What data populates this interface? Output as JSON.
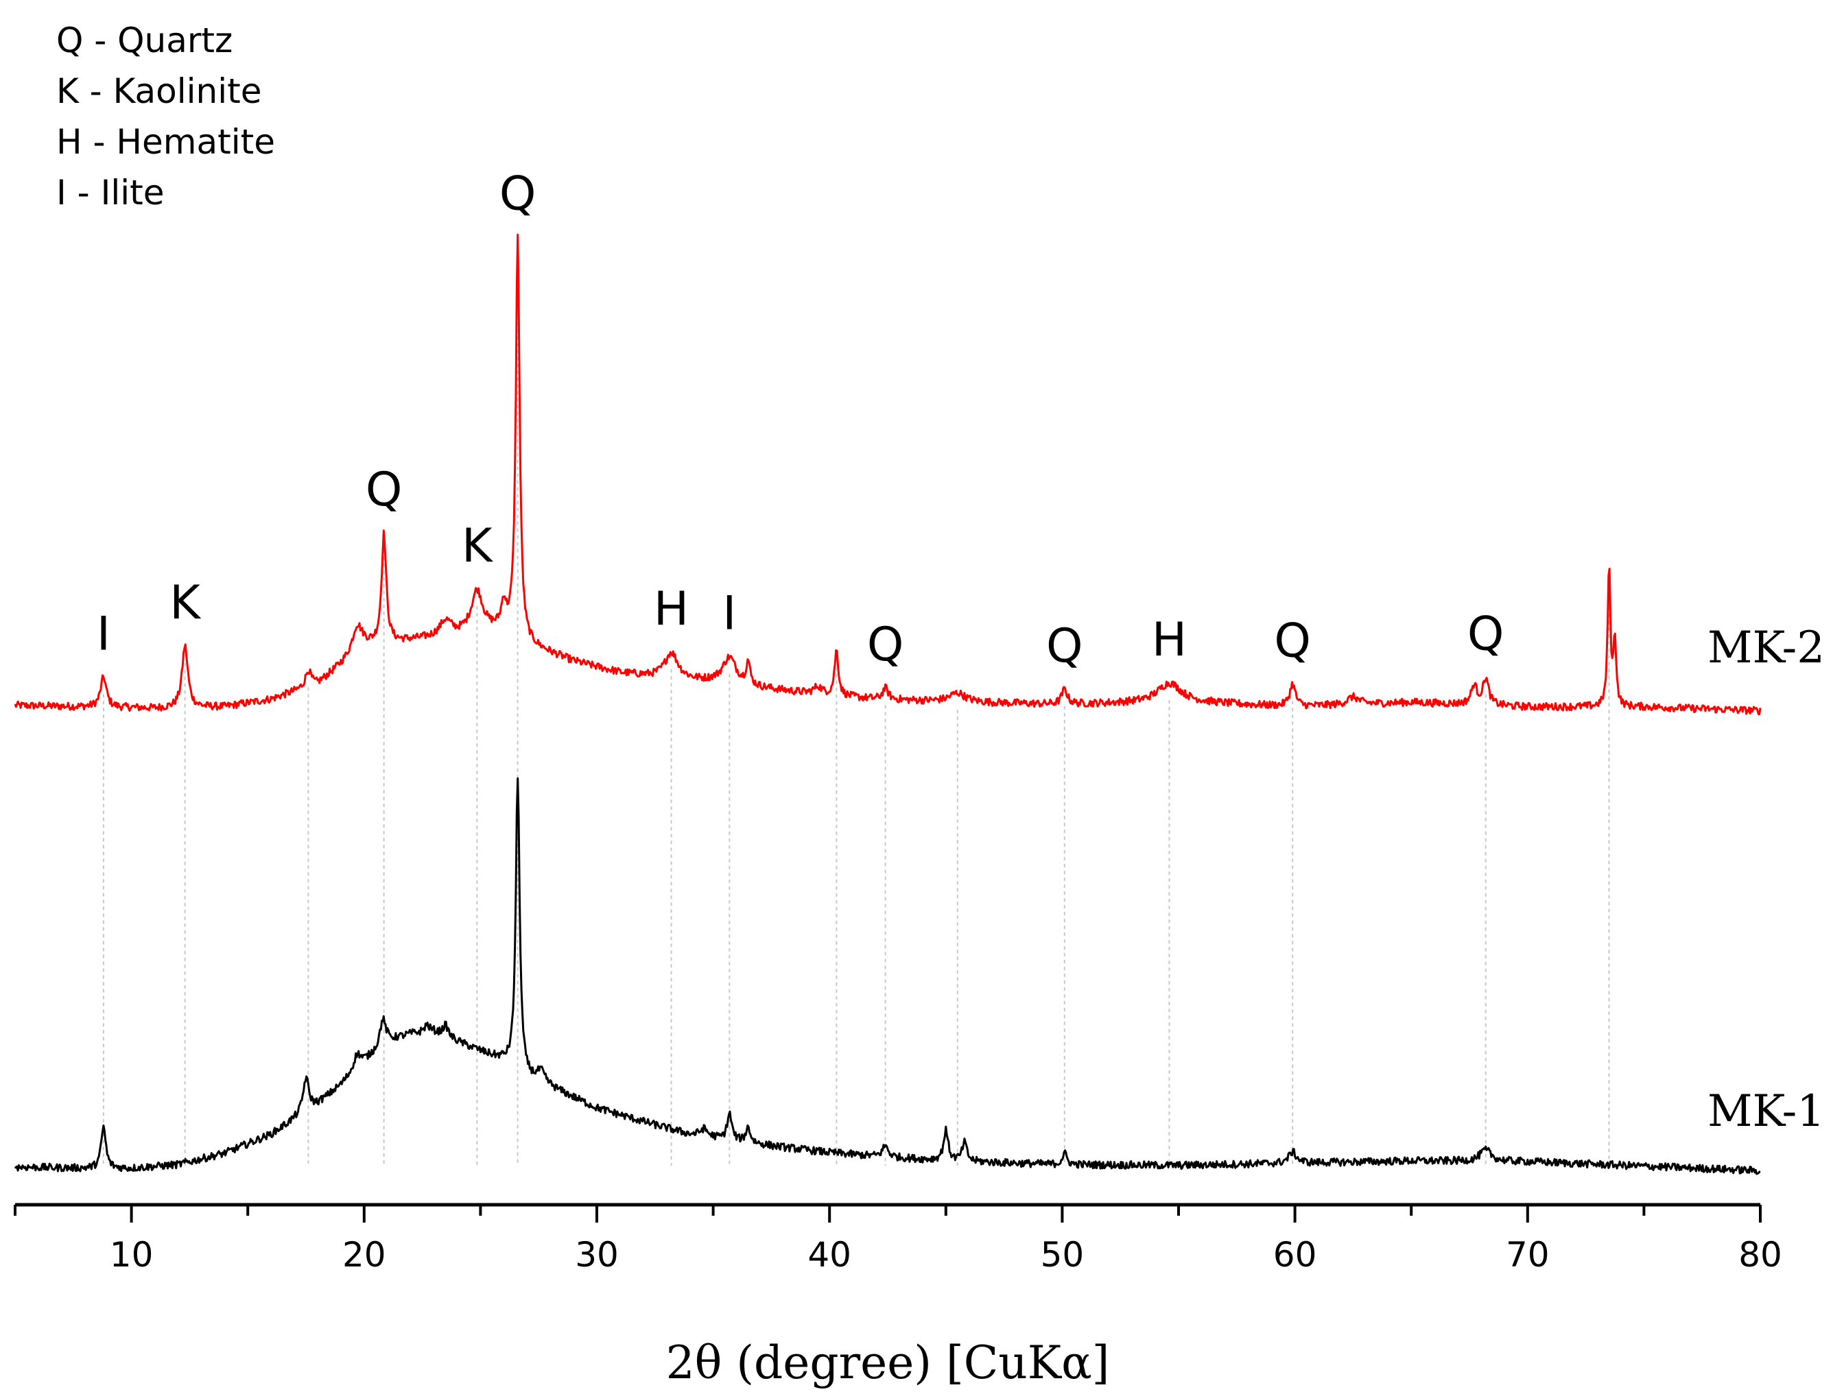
{
  "chart_data": {
    "type": "line",
    "xlabel": "2θ (degree) [CuKα]",
    "xlim": [
      5,
      80
    ],
    "x_ticks": [
      10,
      20,
      30,
      40,
      50,
      60,
      70,
      80
    ],
    "x_minor_step": 5,
    "grid": false,
    "legend_text": [
      "Q - Quartz",
      "K - Kaolinite",
      "H - Hematite",
      "I - Ilite"
    ],
    "series": [
      {
        "name": "MK-2",
        "color": "#ff0000",
        "baseline": [
          [
            5,
            0.12
          ],
          [
            8,
            0.1
          ],
          [
            11,
            0.08
          ],
          [
            14,
            0.1
          ],
          [
            16,
            0.2
          ],
          [
            18,
            0.4
          ],
          [
            19,
            0.65
          ],
          [
            20,
            0.9
          ],
          [
            22,
            0.98
          ],
          [
            24,
            1.05
          ],
          [
            26,
            1.12
          ],
          [
            27,
            0.92
          ],
          [
            29,
            0.7
          ],
          [
            31,
            0.55
          ],
          [
            33,
            0.47
          ],
          [
            35,
            0.43
          ],
          [
            37,
            0.35
          ],
          [
            39,
            0.28
          ],
          [
            42,
            0.2
          ],
          [
            45,
            0.17
          ],
          [
            50,
            0.13
          ],
          [
            55,
            0.17
          ],
          [
            60,
            0.1
          ],
          [
            65,
            0.16
          ],
          [
            70,
            0.1
          ],
          [
            75,
            0.1
          ],
          [
            80,
            0.05
          ]
        ],
        "peaks": [
          [
            8.8,
            0.4,
            0.15
          ],
          [
            12.3,
            0.82,
            0.15
          ],
          [
            17.6,
            0.22,
            0.15
          ],
          [
            19.7,
            0.35,
            0.25
          ],
          [
            20.85,
            1.45,
            0.12
          ],
          [
            23.5,
            0.2,
            0.3
          ],
          [
            24.85,
            0.55,
            0.3
          ],
          [
            26.0,
            0.3,
            0.12
          ],
          [
            26.6,
            5.3,
            0.1
          ],
          [
            33.2,
            0.35,
            0.35
          ],
          [
            35.7,
            0.35,
            0.35
          ],
          [
            36.5,
            0.3,
            0.1
          ],
          [
            39.5,
            0.1,
            0.2
          ],
          [
            40.3,
            0.6,
            0.1
          ],
          [
            42.4,
            0.15,
            0.15
          ],
          [
            45.5,
            0.12,
            0.4
          ],
          [
            50.1,
            0.2,
            0.15
          ],
          [
            54.6,
            0.25,
            0.6
          ],
          [
            59.9,
            0.3,
            0.15
          ],
          [
            62.5,
            0.1,
            0.3
          ],
          [
            67.7,
            0.25,
            0.15
          ],
          [
            68.2,
            0.35,
            0.15
          ],
          [
            73.5,
            1.85,
            0.07
          ],
          [
            73.75,
            0.9,
            0.07
          ]
        ]
      },
      {
        "name": "MK-1",
        "color": "#000000",
        "baseline": [
          [
            5,
            0.12
          ],
          [
            8,
            0.1
          ],
          [
            10,
            0.1
          ],
          [
            12,
            0.15
          ],
          [
            14,
            0.3
          ],
          [
            16,
            0.55
          ],
          [
            18,
            0.95
          ],
          [
            19,
            1.2
          ],
          [
            20,
            1.5
          ],
          [
            21,
            1.78
          ],
          [
            22,
            1.88
          ],
          [
            23,
            1.9
          ],
          [
            24,
            1.78
          ],
          [
            25,
            1.65
          ],
          [
            26,
            1.52
          ],
          [
            27,
            1.3
          ],
          [
            28,
            1.18
          ],
          [
            30,
            0.9
          ],
          [
            32,
            0.72
          ],
          [
            34,
            0.55
          ],
          [
            36,
            0.46
          ],
          [
            38,
            0.38
          ],
          [
            40,
            0.31
          ],
          [
            42,
            0.26
          ],
          [
            45,
            0.2
          ],
          [
            50,
            0.15
          ],
          [
            55,
            0.14
          ],
          [
            60,
            0.17
          ],
          [
            65,
            0.2
          ],
          [
            70,
            0.19
          ],
          [
            75,
            0.13
          ],
          [
            80,
            0.07
          ]
        ],
        "peaks": [
          [
            8.8,
            0.55,
            0.12
          ],
          [
            17.5,
            0.45,
            0.15
          ],
          [
            19.7,
            0.2,
            0.2
          ],
          [
            20.8,
            0.35,
            0.15
          ],
          [
            22.7,
            0.1,
            0.15
          ],
          [
            23.5,
            0.15,
            0.15
          ],
          [
            26.6,
            3.9,
            0.1
          ],
          [
            27.6,
            0.15,
            0.2
          ],
          [
            34.6,
            0.1,
            0.2
          ],
          [
            35.7,
            0.35,
            0.12
          ],
          [
            36.5,
            0.2,
            0.12
          ],
          [
            42.4,
            0.15,
            0.15
          ],
          [
            45.0,
            0.4,
            0.12
          ],
          [
            45.8,
            0.25,
            0.12
          ],
          [
            50.1,
            0.15,
            0.12
          ],
          [
            59.9,
            0.15,
            0.2
          ],
          [
            68.2,
            0.15,
            0.3
          ]
        ]
      }
    ],
    "reference_lines_2theta": [
      8.8,
      12.3,
      17.6,
      20.85,
      24.85,
      26.6,
      33.2,
      35.7,
      40.3,
      42.4,
      45.5,
      50.1,
      54.6,
      59.9,
      68.2,
      73.5
    ],
    "peak_annotations": [
      {
        "label": "I",
        "x": 8.8
      },
      {
        "label": "K",
        "x": 12.3
      },
      {
        "label": "Q",
        "x": 20.85
      },
      {
        "label": "K",
        "x": 24.85
      },
      {
        "label": "Q",
        "x": 26.6
      },
      {
        "label": "H",
        "x": 33.2
      },
      {
        "label": "I",
        "x": 35.7
      },
      {
        "label": "Q",
        "x": 42.4
      },
      {
        "label": "Q",
        "x": 50.1
      },
      {
        "label": "H",
        "x": 54.6
      },
      {
        "label": "Q",
        "x": 59.9
      },
      {
        "label": "Q",
        "x": 68.2
      }
    ]
  }
}
